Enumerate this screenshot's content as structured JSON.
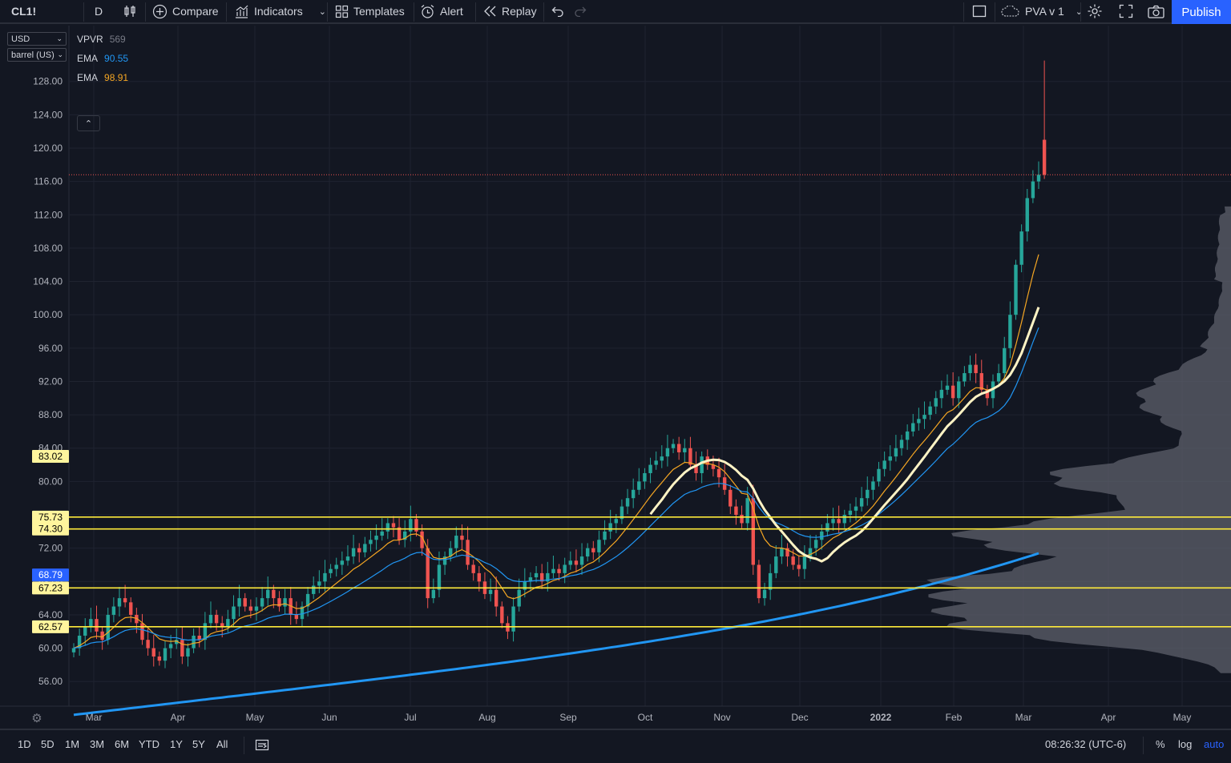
{
  "toolbar": {
    "symbol": "CL1!",
    "interval": "D",
    "compare": "Compare",
    "indicators": "Indicators",
    "templates": "Templates",
    "alert": "Alert",
    "replay": "Replay",
    "layout_name": "PVA v 1",
    "publish": "Publish"
  },
  "scale_controls": {
    "currency": "USD",
    "unit": "barrel (US)"
  },
  "legend": [
    {
      "name": "VPVR",
      "value": "569",
      "color": "#787b86"
    },
    {
      "name": "EMA",
      "value": "90.55",
      "color": "#2196f3"
    },
    {
      "name": "EMA",
      "value": "98.91",
      "color": "#f5a623"
    }
  ],
  "bottom": {
    "ranges": [
      "1D",
      "5D",
      "1M",
      "3M",
      "6M",
      "YTD",
      "1Y",
      "5Y",
      "All"
    ],
    "time": "08:26:32 (UTC-6)",
    "percent": "%",
    "log": "log",
    "auto": "auto"
  },
  "colors": {
    "up": "#26a69a",
    "down": "#ef5350",
    "ema_fast": "#f5a623",
    "ema_mid": "#2196f3",
    "ema_slow": "#2196f3",
    "sma": "#fff3c4",
    "level": "#ffeb3b",
    "volume_profile": "#5d606b"
  },
  "chart_data": {
    "type": "candlestick",
    "instrument": "CL1!",
    "y_ticks": [
      128,
      124,
      120,
      116,
      112,
      108,
      104,
      100,
      96,
      92,
      88,
      84,
      80,
      76,
      72,
      68,
      64,
      60,
      56
    ],
    "y_range": [
      52.5,
      132.5
    ],
    "x_labels": [
      "Mar",
      "Apr",
      "May",
      "Jun",
      "Jul",
      "Aug",
      "Sep",
      "Oct",
      "Nov",
      "Dec",
      "2022",
      "Feb",
      "Mar",
      "Apr",
      "May"
    ],
    "horizontal_levels": [
      {
        "value": 83.02,
        "label": "83.02",
        "line": false
      },
      {
        "value": 75.73,
        "label": "75.73",
        "line": true
      },
      {
        "value": 74.3,
        "label": "74.30",
        "line": true
      },
      {
        "value": 67.23,
        "label": "67.23",
        "line": true
      },
      {
        "value": 62.57,
        "label": "62.57",
        "line": true
      }
    ],
    "ema_marker": {
      "value": 68.79,
      "label": "68.79"
    },
    "current_price": 116.8,
    "closes": [
      60,
      61.5,
      62.5,
      63.5,
      62,
      61,
      64,
      65,
      66,
      65.5,
      64,
      63,
      61,
      60,
      59,
      58.5,
      60,
      60.5,
      61,
      59,
      60,
      61.5,
      61,
      63,
      64,
      63,
      62.5,
      63.5,
      65,
      66,
      65,
      64.5,
      65,
      66,
      67,
      66,
      65,
      66,
      64,
      63.5,
      65,
      66.5,
      67.5,
      68,
      69,
      69.5,
      70,
      70.5,
      71,
      72,
      71.5,
      72.5,
      73,
      73.5,
      74,
      75,
      74.5,
      73,
      74,
      75.5,
      74,
      72,
      66,
      67,
      70,
      71,
      72,
      73.5,
      73,
      70,
      69,
      68,
      66.5,
      67,
      65,
      63,
      62,
      65,
      67,
      68,
      68.5,
      69,
      68,
      69,
      69.5,
      69,
      70,
      70.5,
      70,
      71,
      72,
      71.5,
      73,
      74,
      75,
      75.5,
      77,
      78,
      79,
      80,
      81,
      82,
      82.5,
      83,
      84,
      84.5,
      83.5,
      84,
      82,
      81,
      83,
      82,
      81.5,
      80.5,
      79,
      77,
      76,
      75,
      78,
      70,
      66,
      67,
      69,
      71,
      72,
      71,
      70,
      69.5,
      71,
      72,
      73,
      74,
      75,
      75.5,
      75,
      76,
      76.5,
      77,
      78,
      79,
      80,
      81.5,
      82.5,
      83,
      84,
      85,
      86,
      87,
      87.5,
      88,
      89,
      90,
      91,
      91.5,
      90,
      92,
      93,
      94,
      93,
      91,
      90,
      92,
      93,
      96,
      100,
      106,
      110,
      114,
      116,
      116.8
    ],
    "ema_values_visible": {
      "ema_mid": 90.55,
      "ema_fast": 98.91
    },
    "volume_profile_peaks": [
      {
        "price": 62.6,
        "width": "wide"
      },
      {
        "price": 67.2,
        "width": "widest"
      },
      {
        "price": 73.5,
        "width": "wide"
      },
      {
        "price": 80.5,
        "width": "medium"
      },
      {
        "price": 90.0,
        "width": "narrow"
      }
    ]
  }
}
